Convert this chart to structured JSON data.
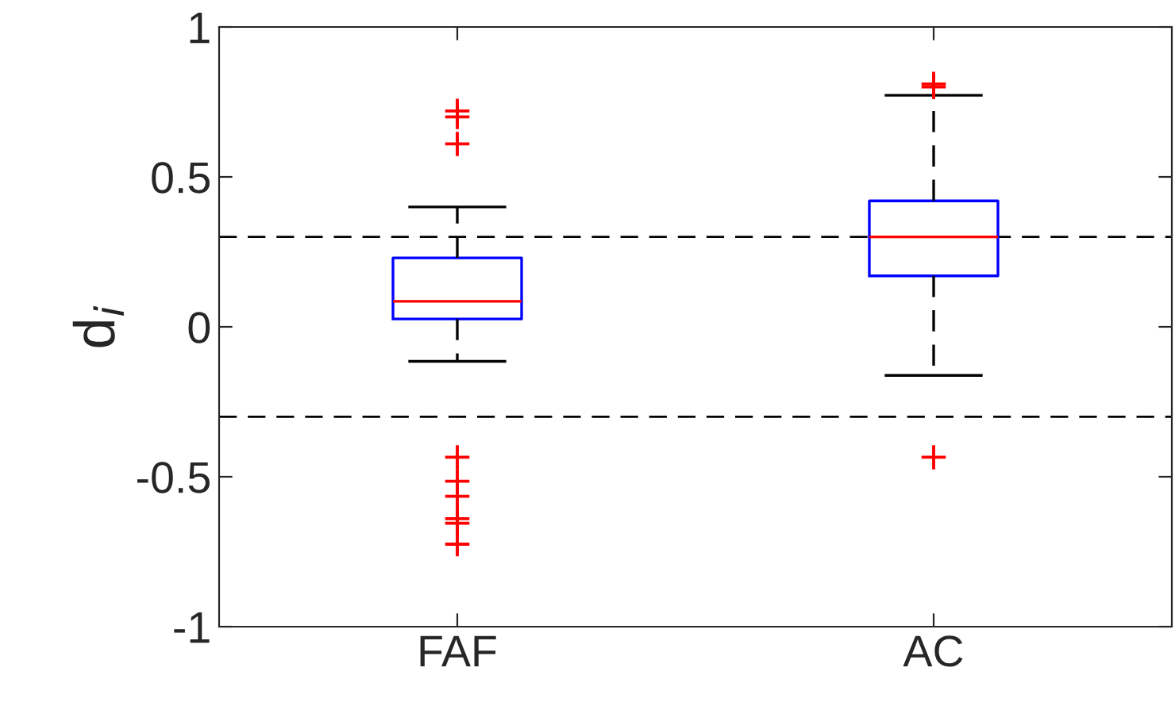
{
  "chart_data": {
    "type": "box",
    "ylabel": "d$_{i}$",
    "categories": [
      "FAF",
      "AC"
    ],
    "boxes": [
      {
        "low": -0.115,
        "q1": 0.026,
        "median": 0.085,
        "q3": 0.23,
        "high": 0.4,
        "outliers": [
          0.72,
          0.7,
          0.61,
          -0.435,
          -0.515,
          -0.565,
          -0.64,
          -0.655,
          -0.725
        ]
      },
      {
        "low": -0.162,
        "q1": 0.17,
        "median": 0.3,
        "q3": 0.42,
        "high": 0.772,
        "outliers": [
          0.8,
          0.81,
          -0.435
        ]
      }
    ],
    "ylim": [
      -1,
      1
    ],
    "yticks": [
      -1,
      {
        "value": -0.5,
        "label": "-0.5"
      },
      0,
      {
        "value": 0.5,
        "label": "0.5"
      },
      1
    ],
    "ref_lines": [
      {
        "axis": "y",
        "value": 0.3,
        "color": "#000000",
        "line_style": "dashed"
      },
      {
        "axis": "y",
        "value": -0.3,
        "color": "#000000",
        "line_style": "dashed"
      }
    ],
    "line_style": "dashed",
    "marker": "cross",
    "grid": false
  }
}
